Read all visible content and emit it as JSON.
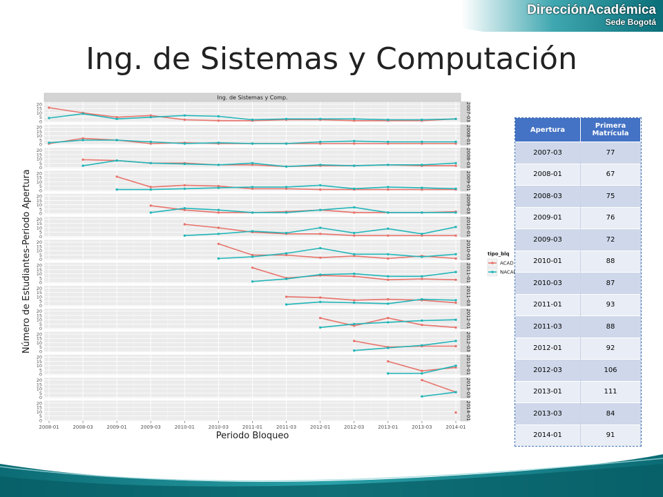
{
  "header": {
    "brand_main": "DirecciónAcadémica",
    "brand_sub": "Sede Bogotá"
  },
  "slide_title": "Ing. de Sistemas y Computación",
  "colors": {
    "acad": "#e8726a",
    "nacad": "#1fb5b8",
    "banner": "#0e7c86",
    "table_header": "#4472c4"
  },
  "chart_data": {
    "type": "line",
    "title": "Ing. de Sistemas y Comp.",
    "xlabel": "Periodo Bloqueo",
    "ylabel": "Número de Estudiantes-Periodo Apertura",
    "categories": [
      "2008-01",
      "2008-03",
      "2009-01",
      "2009-03",
      "2010-01",
      "2010-03",
      "2011-01",
      "2011-03",
      "2012-01",
      "2012-03",
      "2013-01",
      "2013-03",
      "2014-01"
    ],
    "ylim": [
      0,
      22
    ],
    "yticks": [
      0,
      5,
      10,
      15,
      20
    ],
    "legend_title": "tipo_blq",
    "legend_position": "right",
    "grid": true,
    "legend": [
      {
        "name": "ACAD"
      },
      {
        "name": "NACAD"
      }
    ],
    "panels": [
      {
        "strip": "2007-03",
        "series": [
          {
            "name": "ACAD",
            "start": 0,
            "values": [
              16,
              10,
              5,
              7,
              2,
              1,
              1,
              2,
              2,
              1,
              1,
              1,
              3
            ]
          },
          {
            "name": "NACAD",
            "start": 0,
            "values": [
              4,
              9,
              3,
              5,
              7,
              6,
              2,
              3,
              3,
              3,
              2,
              2,
              3
            ]
          }
        ]
      },
      {
        "strip": "2008-01",
        "series": [
          {
            "name": "ACAD",
            "start": 0,
            "values": [
              1,
              7,
              5,
              1,
              2,
              1,
              1,
              1,
              1,
              1,
              1,
              1,
              1
            ]
          },
          {
            "name": "NACAD",
            "start": 0,
            "values": [
              2,
              5,
              5,
              3,
              1,
              2,
              1,
              1,
              3,
              4,
              3,
              3,
              3
            ]
          }
        ]
      },
      {
        "strip": "2008-03",
        "series": [
          {
            "name": "ACAD",
            "start": 1,
            "values": [
              9,
              8,
              5,
              5,
              3,
              3,
              1,
              2,
              2,
              3,
              2,
              2
            ]
          },
          {
            "name": "NACAD",
            "start": 1,
            "values": [
              2,
              8,
              5,
              4,
              3,
              5,
              1,
              3,
              2,
              3,
              3,
              5
            ]
          }
        ]
      },
      {
        "strip": "2009-01",
        "series": [
          {
            "name": "ACAD",
            "start": 2,
            "values": [
              16,
              4,
              6,
              5,
              2,
              2,
              1,
              1,
              1,
              1,
              1
            ]
          },
          {
            "name": "NACAD",
            "start": 2,
            "values": [
              1,
              1,
              2,
              3,
              4,
              4,
              6,
              2,
              4,
              3,
              2
            ]
          }
        ]
      },
      {
        "strip": "2009-03",
        "series": [
          {
            "name": "ACAD",
            "start": 3,
            "values": [
              9,
              4,
              1,
              1,
              2,
              4,
              1,
              1,
              1,
              2
            ]
          },
          {
            "name": "NACAD",
            "start": 3,
            "values": [
              1,
              6,
              4,
              1,
              1,
              4,
              7,
              1,
              1,
              1
            ]
          }
        ]
      },
      {
        "strip": "2010-01",
        "series": [
          {
            "name": "ACAD",
            "start": 4,
            "values": [
              14,
              10,
              5,
              3,
              3,
              1,
              1,
              1,
              1
            ]
          },
          {
            "name": "NACAD",
            "start": 4,
            "values": [
              1,
              3,
              6,
              4,
              10,
              4,
              9,
              3,
              11
            ]
          }
        ]
      },
      {
        "strip": "2010-03",
        "series": [
          {
            "name": "ACAD",
            "start": 5,
            "values": [
              18,
              5,
              5,
              2,
              4,
              1,
              4,
              1
            ]
          },
          {
            "name": "NACAD",
            "start": 5,
            "values": [
              1,
              3,
              7,
              13,
              6,
              6,
              3,
              6
            ]
          }
        ]
      },
      {
        "strip": "2011-01",
        "series": [
          {
            "name": "ACAD",
            "start": 6,
            "values": [
              17,
              5,
              8,
              7,
              3,
              4,
              3
            ]
          },
          {
            "name": "NACAD",
            "start": 6,
            "values": [
              1,
              4,
              9,
              10,
              7,
              7,
              12
            ]
          }
        ]
      },
      {
        "strip": "2011-03",
        "series": [
          {
            "name": "ACAD",
            "start": 7,
            "values": [
              10,
              9,
              6,
              7,
              6,
              3
            ]
          },
          {
            "name": "NACAD",
            "start": 7,
            "values": [
              1,
              4,
              3,
              2,
              7,
              6
            ]
          }
        ]
      },
      {
        "strip": "2012-01",
        "series": [
          {
            "name": "ACAD",
            "start": 8,
            "values": [
              12,
              3,
              12,
              4,
              1
            ]
          },
          {
            "name": "NACAD",
            "start": 8,
            "values": [
              1,
              5,
              7,
              9,
              10
            ]
          }
        ]
      },
      {
        "strip": "2012-03",
        "series": [
          {
            "name": "ACAD",
            "start": 9,
            "values": [
              12,
              5,
              6,
              6
            ]
          },
          {
            "name": "NACAD",
            "start": 9,
            "values": [
              1,
              4,
              7,
              12
            ]
          }
        ]
      },
      {
        "strip": "2013-01",
        "series": [
          {
            "name": "ACAD",
            "start": 10,
            "values": [
              15,
              4,
              8
            ]
          },
          {
            "name": "NACAD",
            "start": 10,
            "values": [
              1,
              1,
              10
            ]
          }
        ]
      },
      {
        "strip": "2013-03",
        "series": [
          {
            "name": "ACAD",
            "start": 11,
            "values": [
              20,
              6
            ]
          },
          {
            "name": "NACAD",
            "start": 11,
            "values": [
              1,
              6
            ]
          }
        ]
      },
      {
        "strip": "2014-01",
        "series": [
          {
            "name": "ACAD",
            "start": 12,
            "values": [
              9
            ]
          }
        ]
      }
    ]
  },
  "table": {
    "headers": [
      "Apertura",
      "Primera Matrícula"
    ],
    "rows": [
      [
        "2007-03",
        "77"
      ],
      [
        "2008-01",
        "67"
      ],
      [
        "2008-03",
        "75"
      ],
      [
        "2009-01",
        "76"
      ],
      [
        "2009-03",
        "72"
      ],
      [
        "2010-01",
        "88"
      ],
      [
        "2010-03",
        "87"
      ],
      [
        "2011-01",
        "93"
      ],
      [
        "2011-03",
        "88"
      ],
      [
        "2012-01",
        "92"
      ],
      [
        "2012-03",
        "106"
      ],
      [
        "2013-01",
        "111"
      ],
      [
        "2013-03",
        "84"
      ],
      [
        "2014-01",
        "91"
      ]
    ]
  }
}
